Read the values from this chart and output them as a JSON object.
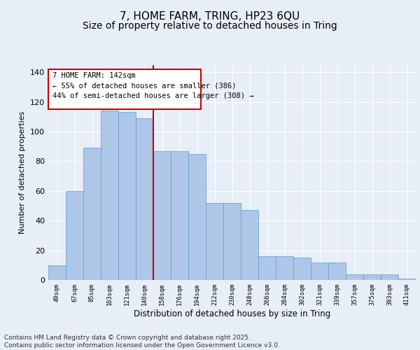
{
  "title_line1": "7, HOME FARM, TRING, HP23 6QU",
  "title_line2": "Size of property relative to detached houses in Tring",
  "xlabel": "Distribution of detached houses by size in Tring",
  "ylabel": "Number of detached properties",
  "categories": [
    "49sqm",
    "67sqm",
    "85sqm",
    "103sqm",
    "121sqm",
    "140sqm",
    "158sqm",
    "176sqm",
    "194sqm",
    "212sqm",
    "230sqm",
    "248sqm",
    "266sqm",
    "284sqm",
    "302sqm",
    "321sqm",
    "339sqm",
    "357sqm",
    "375sqm",
    "393sqm",
    "411sqm"
  ],
  "values": [
    10,
    60,
    89,
    114,
    113,
    109,
    87,
    87,
    85,
    52,
    52,
    47,
    16,
    16,
    15,
    12,
    12,
    4,
    4,
    4,
    1
  ],
  "bar_color": "#aec6e8",
  "bar_edge_color": "#5b9bd5",
  "vline_x": 5.5,
  "vline_color": "#cc0000",
  "annotation_box_text": "7 HOME FARM: 142sqm\n← 55% of detached houses are smaller (386)\n44% of semi-detached houses are larger (308) →",
  "box_edge_color": "#cc0000",
  "ylim": [
    0,
    145
  ],
  "yticks": [
    0,
    20,
    40,
    60,
    80,
    100,
    120,
    140
  ],
  "background_color": "#e8eef7",
  "footer_text": "Contains HM Land Registry data © Crown copyright and database right 2025.\nContains public sector information licensed under the Open Government Licence v3.0.",
  "grid_color": "#ffffff",
  "title_fontsize": 11,
  "subtitle_fontsize": 10,
  "annotation_fontsize": 7.5,
  "footer_fontsize": 6.5
}
